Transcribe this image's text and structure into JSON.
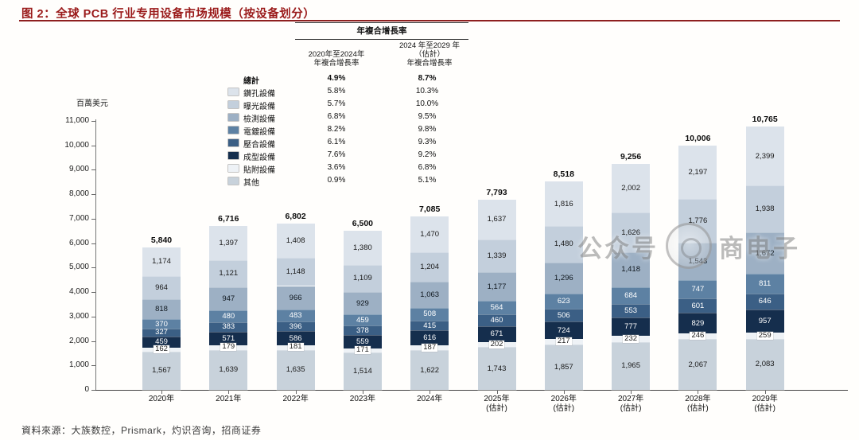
{
  "header": {
    "title": "图 2：全球 PCB 行业专用设备市场规模（按设备划分）",
    "accent_color": "#8e1f1f"
  },
  "footer": {
    "source": "資料來源：大族数控，Prismark，灼识咨询，招商证券"
  },
  "watermark": {
    "left_text": "公众号",
    "right_text": "商电子"
  },
  "legend": {
    "header": "年複合增長率",
    "col1": {
      "line1": "2020年至2024年",
      "line2": "年複合增長率"
    },
    "col2": {
      "line1": "2024 年至2029 年",
      "line2": "（估計）",
      "line3": "年複合增長率"
    },
    "total": {
      "label": "總計",
      "cagr_2020_2024": "4.9%",
      "cagr_2024_2029": "8.7%"
    }
  },
  "chart_data": {
    "type": "bar",
    "subtype": "stacked",
    "unit_label": "百萬美元",
    "ylim": [
      0,
      11000
    ],
    "ytick_step": 1000,
    "grid": false,
    "legend_position": "top-left-inside",
    "categories": [
      {
        "year": "2020年",
        "note": ""
      },
      {
        "year": "2021年",
        "note": ""
      },
      {
        "year": "2022年",
        "note": ""
      },
      {
        "year": "2023年",
        "note": ""
      },
      {
        "year": "2024年",
        "note": ""
      },
      {
        "year": "2025年",
        "note": "(估計)"
      },
      {
        "year": "2026年",
        "note": "(估計)"
      },
      {
        "year": "2027年",
        "note": "(估計)"
      },
      {
        "year": "2028年",
        "note": "(估計)"
      },
      {
        "year": "2029年",
        "note": "(估計)"
      }
    ],
    "totals": [
      5840,
      6716,
      6802,
      6500,
      7085,
      7793,
      8518,
      9256,
      10006,
      10765
    ],
    "series": [
      {
        "name": "鑽孔設備",
        "color": "#dce3eb",
        "label_color": "#1a1a1a",
        "cagr_2020_2024": "5.8%",
        "cagr_2024_2029": "10.3%",
        "values": [
          1174,
          1397,
          1408,
          1380,
          1470,
          1637,
          1816,
          2002,
          2197,
          2399
        ]
      },
      {
        "name": "曝光設備",
        "color": "#c3cfdc",
        "label_color": "#1a1a1a",
        "cagr_2020_2024": "5.7%",
        "cagr_2024_2029": "10.0%",
        "values": [
          964,
          1121,
          1148,
          1109,
          1204,
          1339,
          1480,
          1626,
          1776,
          1938
        ]
      },
      {
        "name": "檢測設備",
        "color": "#9db0c4",
        "label_color": "#10181f",
        "cagr_2020_2024": "6.8%",
        "cagr_2024_2029": "9.5%",
        "values": [
          818,
          947,
          966,
          929,
          1063,
          1177,
          1296,
          1418,
          1543,
          1672
        ]
      },
      {
        "name": "電鍍設備",
        "color": "#5d81a3",
        "label_color": "#ffffff",
        "cagr_2020_2024": "8.2%",
        "cagr_2024_2029": "9.8%",
        "values": [
          370,
          480,
          483,
          459,
          508,
          564,
          623,
          684,
          747,
          811
        ]
      },
      {
        "name": "壓合設備",
        "color": "#3b5f85",
        "label_color": "#ffffff",
        "cagr_2020_2024": "6.1%",
        "cagr_2024_2029": "9.3%",
        "values": [
          327,
          383,
          396,
          378,
          415,
          460,
          506,
          553,
          601,
          646
        ]
      },
      {
        "name": "成型設備",
        "color": "#152e4d",
        "label_color": "#ffffff",
        "cagr_2020_2024": "7.6%",
        "cagr_2024_2029": "9.2%",
        "values": [
          459,
          571,
          586,
          559,
          616,
          671,
          724,
          777,
          829,
          957
        ]
      },
      {
        "name": "貼附設備",
        "color": "#eef2f6",
        "label_color": "#1a1a1a",
        "cagr_2020_2024": "3.6%",
        "cagr_2024_2029": "6.8%",
        "values": [
          162,
          179,
          181,
          171,
          187,
          202,
          217,
          232,
          246,
          259
        ]
      },
      {
        "name": "其他",
        "color": "#c8d2db",
        "label_color": "#1a1a1a",
        "cagr_2020_2024": "0.9%",
        "cagr_2024_2029": "5.1%",
        "values": [
          1567,
          1639,
          1635,
          1514,
          1622,
          1743,
          1857,
          1965,
          2067,
          2083
        ]
      }
    ]
  }
}
